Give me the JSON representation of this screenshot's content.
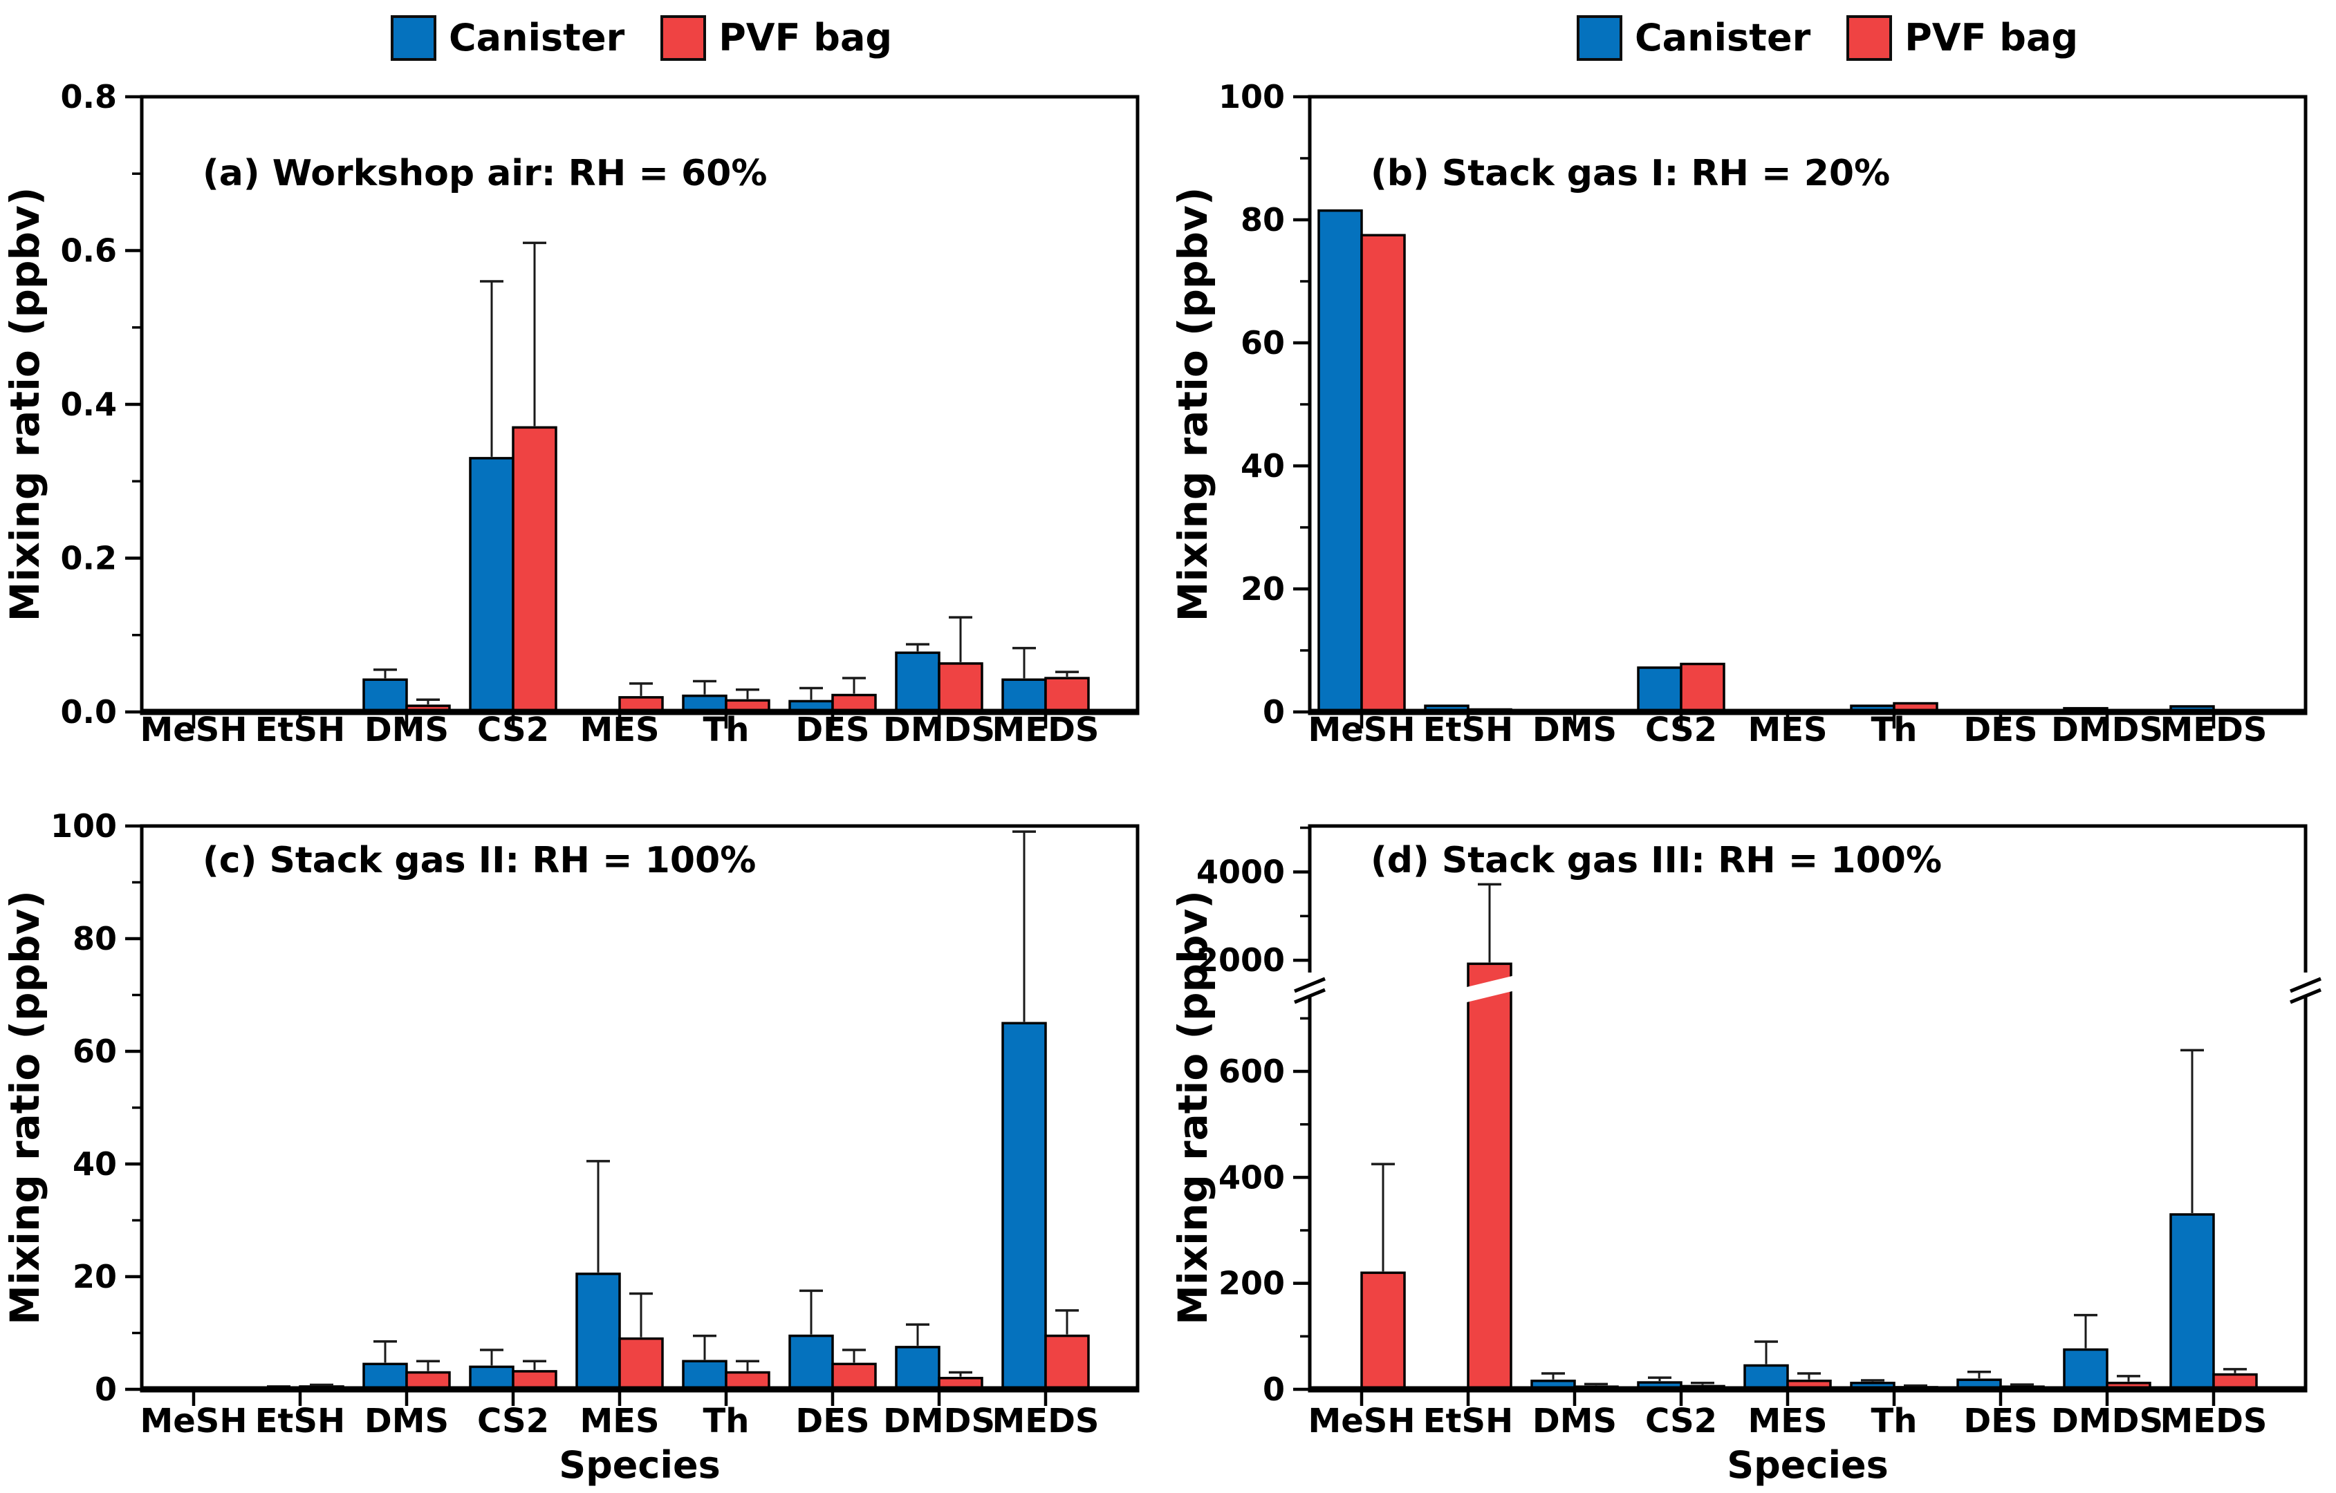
{
  "colors": {
    "canister": "#0572BE",
    "pvf_bag": "#EF4343",
    "outline": "#000000",
    "error": "#1a1a1a"
  },
  "legend": {
    "items": [
      {
        "label": "Canister",
        "color_key": "canister"
      },
      {
        "label": "PVF bag",
        "color_key": "pvf_bag"
      }
    ]
  },
  "axis_titles": {
    "y": "Mixing ratio (ppbv)",
    "x": "Species"
  },
  "categories": [
    "MeSH",
    "EtSH",
    "DMS",
    "CS2",
    "MES",
    "Th",
    "DES",
    "DMDS",
    "MEDS"
  ],
  "chart_data": [
    {
      "id": "a",
      "type": "bar",
      "row": "top",
      "title": "(a) Workshop air: RH = 60%",
      "ylabel": "Mixing ratio (ppbv)",
      "xlabel": null,
      "ylim": [
        0,
        0.8
      ],
      "yticks_major": [
        0,
        0.2,
        0.4,
        0.6,
        0.8
      ],
      "ytick_labels": [
        "0.0",
        "0.2",
        "0.4",
        "0.6",
        "0.8"
      ],
      "yticks_minor": [
        0.1,
        0.3,
        0.5,
        0.7
      ],
      "categories": [
        "MeSH",
        "EtSH",
        "DMS",
        "CS2",
        "MES",
        "Th",
        "DES",
        "DMDS",
        "MEDS"
      ],
      "series": [
        {
          "name": "Canister",
          "color_key": "canister",
          "values": [
            0,
            0,
            0.042,
            0.33,
            0,
            0.021,
            0.014,
            0.077,
            0.042
          ],
          "errors": [
            0,
            0,
            0.013,
            0.23,
            0,
            0.019,
            0.017,
            0.011,
            0.041
          ]
        },
        {
          "name": "PVF bag",
          "color_key": "pvf_bag",
          "values": [
            0,
            0,
            0.008,
            0.37,
            0.019,
            0.015,
            0.022,
            0.063,
            0.044
          ],
          "errors": [
            0,
            0,
            0.008,
            0.24,
            0.018,
            0.014,
            0.022,
            0.06,
            0.008
          ]
        }
      ]
    },
    {
      "id": "b",
      "type": "bar",
      "row": "top",
      "title": "(b) Stack gas I: RH = 20%",
      "ylabel": "Mixing ratio (ppbv)",
      "xlabel": null,
      "ylim": [
        0,
        100
      ],
      "yticks_major": [
        0,
        20,
        40,
        60,
        80,
        100
      ],
      "ytick_labels": [
        "0",
        "20",
        "40",
        "60",
        "80",
        "100"
      ],
      "yticks_minor": [
        10,
        30,
        50,
        70,
        90
      ],
      "categories": [
        "MeSH",
        "EtSH",
        "DMS",
        "CS2",
        "MES",
        "Th",
        "DES",
        "DMDS",
        "MEDS"
      ],
      "series": [
        {
          "name": "Canister",
          "color_key": "canister",
          "values": [
            81.5,
            1.0,
            0.3,
            7.2,
            0,
            1.0,
            0.3,
            0.6,
            0.9
          ],
          "errors": [
            0,
            0,
            0,
            0,
            0,
            0,
            0,
            0,
            0
          ]
        },
        {
          "name": "PVF bag",
          "color_key": "pvf_bag",
          "values": [
            77.5,
            0.4,
            0.3,
            7.8,
            0,
            1.4,
            0.2,
            0.1,
            0.1
          ],
          "errors": [
            0,
            0,
            0,
            0,
            0,
            0,
            0,
            0,
            0
          ]
        }
      ]
    },
    {
      "id": "c",
      "type": "bar",
      "row": "bottom",
      "title": "(c) Stack gas II: RH = 100%",
      "ylabel": "Mixing ratio (ppbv)",
      "xlabel": "Species",
      "ylim": [
        0,
        100
      ],
      "yticks_major": [
        0,
        20,
        40,
        60,
        80,
        100
      ],
      "ytick_labels": [
        "0",
        "20",
        "40",
        "60",
        "80",
        "100"
      ],
      "yticks_minor": [
        10,
        30,
        50,
        70,
        90
      ],
      "categories": [
        "MeSH",
        "EtSH",
        "DMS",
        "CS2",
        "MES",
        "Th",
        "DES",
        "DMDS",
        "MEDS"
      ],
      "series": [
        {
          "name": "Canister",
          "color_key": "canister",
          "values": [
            0,
            0.3,
            4.5,
            4.0,
            20.5,
            5.0,
            9.5,
            7.5,
            65
          ],
          "errors": [
            0,
            0.2,
            4.0,
            3.0,
            20,
            4.5,
            8.0,
            4.0,
            34
          ]
        },
        {
          "name": "PVF bag",
          "color_key": "pvf_bag",
          "values": [
            0,
            0.5,
            3.0,
            3.2,
            9.0,
            3.0,
            4.5,
            2.0,
            9.5
          ],
          "errors": [
            0,
            0.3,
            2.0,
            1.8,
            8.0,
            2.0,
            2.5,
            1.0,
            4.5
          ]
        }
      ]
    },
    {
      "id": "d",
      "type": "bar",
      "row": "bottom",
      "broken": true,
      "title": "(d) Stack gas III: RH = 100%",
      "ylabel": "Mixing ratio (ppbv)",
      "xlabel": "Species",
      "lower": {
        "lim": [
          0,
          750
        ],
        "major": [
          0,
          200,
          400,
          600
        ],
        "labels": [
          "0",
          "200",
          "400",
          "600"
        ],
        "minor": [
          100,
          300,
          500,
          700
        ]
      },
      "upper": {
        "lim": [
          1800,
          5040
        ],
        "major": [
          2000,
          4000
        ],
        "labels": [
          "2000",
          "4000"
        ],
        "minor": [
          3000,
          5000
        ]
      },
      "categories": [
        "MeSH",
        "EtSH",
        "DMS",
        "CS2",
        "MES",
        "Th",
        "DES",
        "DMDS",
        "MEDS"
      ],
      "series": [
        {
          "name": "Canister",
          "color_key": "canister",
          "values": [
            0,
            0,
            16,
            13,
            45,
            12,
            18,
            75,
            330
          ],
          "errors": [
            0,
            0,
            14,
            9,
            45,
            5,
            15,
            65,
            310
          ]
        },
        {
          "name": "PVF bag",
          "color_key": "pvf_bag",
          "values": [
            220,
            1920,
            5,
            6,
            16,
            4,
            5,
            12,
            28
          ],
          "errors": [
            205,
            1800,
            5,
            6,
            14,
            3,
            4,
            13,
            10
          ]
        }
      ]
    }
  ]
}
